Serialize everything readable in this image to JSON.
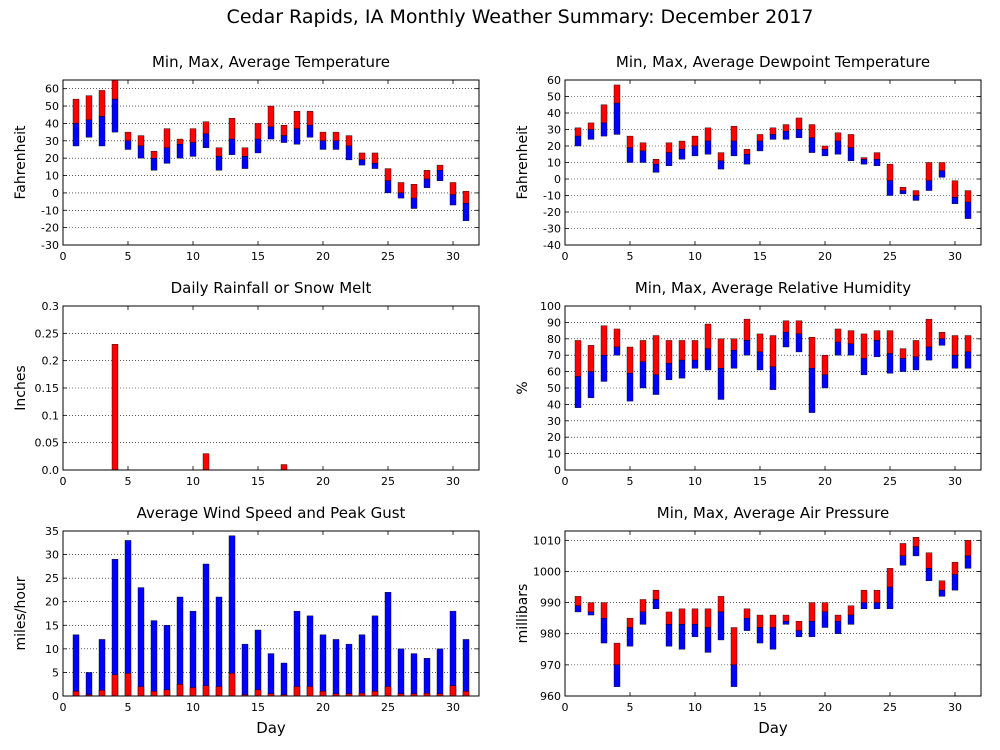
{
  "suptitle": "Cedar Rapids, IA Monthly Weather Summary: December 2017",
  "colors": {
    "max_bar": "#ff0000",
    "min_bar": "#0000ff",
    "gridline": "#000000",
    "background": "#ffffff"
  },
  "chart_data": [
    {
      "id": "temp",
      "type": "bar",
      "title": "Min, Max, Average Temperature",
      "ylabel": "Fahrenheit",
      "xlabel": "",
      "xlim": [
        0,
        32
      ],
      "xticks": [
        0,
        5,
        10,
        15,
        20,
        25,
        30
      ],
      "ylim": [
        -30,
        65
      ],
      "yticks": [
        -30,
        -20,
        -10,
        0,
        10,
        20,
        30,
        40,
        50,
        60
      ],
      "grid": true,
      "encoding": "floating-range",
      "series": [
        {
          "name": "",
          "color": "#ff0000",
          "role": "avg-to-max",
          "x": [
            1,
            2,
            3,
            4,
            5,
            6,
            7,
            8,
            9,
            10,
            11,
            12,
            13,
            14,
            15,
            16,
            17,
            18,
            19,
            20,
            21,
            22,
            23,
            24,
            25,
            26,
            27,
            28,
            29,
            30,
            31
          ],
          "low": [
            40,
            42,
            44,
            54,
            30,
            27,
            20,
            26,
            28,
            29,
            34,
            21,
            31,
            21,
            31,
            38,
            33,
            37,
            39,
            30,
            30,
            27,
            19,
            17,
            7,
            0,
            -3,
            8,
            13,
            -1,
            -6
          ],
          "high": [
            54,
            56,
            59,
            65,
            35,
            33,
            24,
            37,
            31,
            37,
            41,
            26,
            43,
            26,
            40,
            50,
            39,
            47,
            47,
            35,
            35,
            33,
            23,
            23,
            14,
            6,
            5,
            13,
            16,
            6,
            1
          ]
        },
        {
          "name": "",
          "color": "#0000ff",
          "role": "min-to-avg",
          "x": [
            1,
            2,
            3,
            4,
            5,
            6,
            7,
            8,
            9,
            10,
            11,
            12,
            13,
            14,
            15,
            16,
            17,
            18,
            19,
            20,
            21,
            22,
            23,
            24,
            25,
            26,
            27,
            28,
            29,
            30,
            31
          ],
          "low": [
            27,
            32,
            27,
            35,
            25,
            20,
            13,
            17,
            20,
            21,
            26,
            13,
            22,
            14,
            23,
            31,
            29,
            28,
            32,
            25,
            25,
            19,
            16,
            14,
            0,
            -3,
            -9,
            3,
            7,
            -7,
            -16
          ],
          "high": [
            40,
            42,
            44,
            54,
            30,
            27,
            20,
            26,
            28,
            29,
            34,
            21,
            31,
            21,
            31,
            38,
            33,
            37,
            39,
            30,
            30,
            27,
            19,
            17,
            7,
            0,
            -3,
            8,
            13,
            -1,
            -6
          ]
        }
      ]
    },
    {
      "id": "dewp",
      "type": "bar",
      "title": "Min, Max, Average Dewpoint Temperature",
      "ylabel": "Fahrenheit",
      "xlabel": "",
      "xlim": [
        0,
        32
      ],
      "xticks": [
        0,
        5,
        10,
        15,
        20,
        25,
        30
      ],
      "ylim": [
        -40,
        60
      ],
      "yticks": [
        -40,
        -30,
        -20,
        -10,
        0,
        10,
        20,
        30,
        40,
        50,
        60
      ],
      "grid": true,
      "encoding": "floating-range",
      "series": [
        {
          "name": "",
          "color": "#ff0000",
          "role": "avg-to-max",
          "x": [
            1,
            2,
            3,
            4,
            5,
            6,
            7,
            8,
            9,
            10,
            11,
            12,
            13,
            14,
            15,
            16,
            17,
            18,
            19,
            20,
            21,
            22,
            23,
            24,
            25,
            26,
            27,
            28,
            29,
            30,
            31
          ],
          "low": [
            26,
            30,
            34,
            46,
            19,
            17,
            9,
            16,
            18,
            20,
            23,
            11,
            23,
            15,
            23,
            27,
            29,
            30,
            25,
            18,
            23,
            19,
            12,
            12,
            -1,
            -7,
            -10,
            -1,
            5,
            -11,
            -14
          ],
          "high": [
            31,
            34,
            45,
            57,
            26,
            22,
            12,
            22,
            23,
            26,
            31,
            16,
            32,
            18,
            27,
            31,
            33,
            37,
            33,
            20,
            28,
            27,
            13,
            16,
            9,
            -5,
            -7,
            10,
            10,
            -1,
            -7
          ]
        },
        {
          "name": "",
          "color": "#0000ff",
          "role": "min-to-avg",
          "x": [
            1,
            2,
            3,
            4,
            5,
            6,
            7,
            8,
            9,
            10,
            11,
            12,
            13,
            14,
            15,
            16,
            17,
            18,
            19,
            20,
            21,
            22,
            23,
            24,
            25,
            26,
            27,
            28,
            29,
            30,
            31
          ],
          "low": [
            20,
            24,
            26,
            27,
            10,
            10,
            4,
            8,
            12,
            14,
            15,
            6,
            14,
            9,
            17,
            24,
            24,
            25,
            16,
            14,
            15,
            11,
            9,
            8,
            -10,
            -9,
            -13,
            -7,
            1,
            -15,
            -24
          ],
          "high": [
            26,
            30,
            34,
            46,
            19,
            17,
            9,
            16,
            18,
            20,
            23,
            11,
            23,
            15,
            23,
            27,
            29,
            30,
            25,
            18,
            23,
            19,
            12,
            12,
            -1,
            -7,
            -10,
            -1,
            5,
            -11,
            -14
          ]
        }
      ]
    },
    {
      "id": "rain",
      "type": "bar",
      "title": "Daily Rainfall or Snow Melt",
      "ylabel": "Inches",
      "xlabel": "",
      "xlim": [
        0,
        32
      ],
      "xticks": [
        0,
        5,
        10,
        15,
        20,
        25,
        30
      ],
      "ylim": [
        0,
        0.3
      ],
      "yticks": [
        0,
        0.05,
        0.1,
        0.15,
        0.2,
        0.25,
        0.3
      ],
      "ytick_labels": [
        "0.0",
        "0.05",
        "0.1",
        "0.15",
        "0.2",
        "0.25",
        "0.3"
      ],
      "grid": true,
      "encoding": "from-zero",
      "series": [
        {
          "name": "",
          "color": "#ff0000",
          "role": "precip",
          "x": [
            4,
            11,
            17
          ],
          "high": [
            0.23,
            0.03,
            0.01
          ]
        }
      ]
    },
    {
      "id": "rh",
      "type": "bar",
      "title": "Min, Max, Average Relative Humidity",
      "ylabel": "%",
      "xlabel": "",
      "xlim": [
        0,
        32
      ],
      "xticks": [
        0,
        5,
        10,
        15,
        20,
        25,
        30
      ],
      "ylim": [
        0,
        100
      ],
      "yticks": [
        0,
        10,
        20,
        30,
        40,
        50,
        60,
        70,
        80,
        90,
        100
      ],
      "grid": true,
      "encoding": "floating-range",
      "series": [
        {
          "name": "",
          "color": "#ff0000",
          "role": "avg-to-max",
          "x": [
            1,
            2,
            3,
            4,
            5,
            6,
            7,
            8,
            9,
            10,
            11,
            12,
            13,
            14,
            15,
            16,
            17,
            18,
            19,
            20,
            21,
            22,
            23,
            24,
            25,
            26,
            27,
            28,
            29,
            30,
            31
          ],
          "low": [
            57,
            60,
            70,
            75,
            59,
            66,
            58,
            65,
            67,
            67,
            74,
            62,
            73,
            79,
            72,
            63,
            84,
            83,
            62,
            58,
            78,
            77,
            68,
            79,
            71,
            68,
            69,
            75,
            80,
            70,
            72
          ],
          "high": [
            79,
            76,
            88,
            86,
            75,
            79,
            82,
            79,
            79,
            79,
            89,
            80,
            80,
            92,
            83,
            82,
            91,
            91,
            81,
            70,
            86,
            85,
            83,
            85,
            85,
            74,
            79,
            92,
            84,
            82,
            82
          ]
        },
        {
          "name": "",
          "color": "#0000ff",
          "role": "min-to-avg",
          "x": [
            1,
            2,
            3,
            4,
            5,
            6,
            7,
            8,
            9,
            10,
            11,
            12,
            13,
            14,
            15,
            16,
            17,
            18,
            19,
            20,
            21,
            22,
            23,
            24,
            25,
            26,
            27,
            28,
            29,
            30,
            31
          ],
          "low": [
            38,
            44,
            54,
            70,
            42,
            50,
            46,
            55,
            56,
            62,
            61,
            43,
            62,
            70,
            61,
            49,
            75,
            72,
            35,
            50,
            70,
            70,
            58,
            69,
            59,
            60,
            61,
            67,
            76,
            62,
            62
          ],
          "high": [
            57,
            60,
            70,
            75,
            59,
            66,
            58,
            65,
            67,
            67,
            74,
            62,
            73,
            79,
            72,
            63,
            84,
            83,
            62,
            58,
            78,
            77,
            68,
            79,
            71,
            68,
            69,
            75,
            80,
            70,
            72
          ]
        }
      ]
    },
    {
      "id": "wind",
      "type": "bar",
      "title": "Average Wind Speed and Peak Gust",
      "ylabel": "miles/hour",
      "xlabel": "Day",
      "xlim": [
        0,
        32
      ],
      "xticks": [
        0,
        5,
        10,
        15,
        20,
        25,
        30
      ],
      "ylim": [
        0,
        35
      ],
      "yticks": [
        0,
        5,
        10,
        15,
        20,
        25,
        30,
        35
      ],
      "grid": true,
      "encoding": "from-zero",
      "series": [
        {
          "name": "",
          "color": "#0000ff",
          "role": "peak-gust",
          "x": [
            1,
            2,
            3,
            4,
            5,
            6,
            7,
            8,
            9,
            10,
            11,
            12,
            13,
            14,
            15,
            16,
            17,
            18,
            19,
            20,
            21,
            22,
            23,
            24,
            25,
            26,
            27,
            28,
            29,
            30,
            31
          ],
          "high": [
            13,
            5,
            12,
            29,
            33,
            23,
            16,
            15,
            21,
            18,
            28,
            21,
            34,
            11,
            14,
            9,
            7,
            18,
            17,
            13,
            12,
            11,
            13,
            17,
            22,
            10,
            9,
            8,
            10,
            18,
            12
          ]
        },
        {
          "name": "",
          "color": "#ff0000",
          "role": "avg-speed",
          "x": [
            1,
            2,
            3,
            4,
            5,
            6,
            7,
            8,
            9,
            10,
            11,
            12,
            13,
            14,
            15,
            16,
            17,
            18,
            19,
            20,
            21,
            22,
            23,
            24,
            25,
            26,
            27,
            28,
            29,
            30,
            31
          ],
          "high": [
            1,
            0.3,
            1.2,
            4.5,
            4.8,
            2,
            1,
            1.3,
            2.5,
            1.8,
            2.2,
            2,
            4.8,
            0.3,
            1.3,
            0.5,
            0.3,
            2,
            2,
            1,
            0.5,
            0.5,
            0.6,
            1,
            2,
            0.5,
            0.5,
            0.6,
            0.5,
            2.2,
            1
          ]
        }
      ]
    },
    {
      "id": "pres",
      "type": "bar",
      "title": "Min, Max, Average Air Pressure",
      "ylabel": "millibars",
      "xlabel": "Day",
      "xlim": [
        0,
        32
      ],
      "xticks": [
        0,
        5,
        10,
        15,
        20,
        25,
        30
      ],
      "ylim": [
        960,
        1013
      ],
      "yticks": [
        960,
        970,
        980,
        990,
        1000,
        1010
      ],
      "grid": true,
      "encoding": "floating-range",
      "series": [
        {
          "name": "",
          "color": "#ff0000",
          "role": "avg-to-max",
          "x": [
            1,
            2,
            3,
            4,
            5,
            6,
            7,
            8,
            9,
            10,
            11,
            12,
            13,
            14,
            15,
            16,
            17,
            18,
            19,
            20,
            21,
            22,
            23,
            24,
            25,
            26,
            27,
            28,
            29,
            30,
            31
          ],
          "low": [
            989,
            987,
            985,
            970,
            982,
            987,
            991,
            983,
            983,
            983,
            982,
            987,
            970,
            985,
            982,
            982,
            984,
            981,
            984,
            987,
            984,
            986,
            990,
            990,
            995,
            1005,
            1008,
            1001,
            994,
            999,
            1005
          ],
          "high": [
            992,
            990,
            990,
            977,
            985,
            991,
            994,
            987,
            988,
            988,
            988,
            992,
            982,
            988,
            986,
            986,
            986,
            984,
            990,
            990,
            986,
            989,
            994,
            994,
            1001,
            1009,
            1011,
            1006,
            997,
            1003,
            1010
          ]
        },
        {
          "name": "",
          "color": "#0000ff",
          "role": "min-to-avg",
          "x": [
            1,
            2,
            3,
            4,
            5,
            6,
            7,
            8,
            9,
            10,
            11,
            12,
            13,
            14,
            15,
            16,
            17,
            18,
            19,
            20,
            21,
            22,
            23,
            24,
            25,
            26,
            27,
            28,
            29,
            30,
            31
          ],
          "low": [
            987,
            986,
            977,
            963,
            976,
            983,
            988,
            976,
            975,
            979,
            974,
            978,
            963,
            981,
            977,
            975,
            983,
            979,
            979,
            982,
            980,
            983,
            988,
            988,
            988,
            1002,
            1005,
            997,
            992,
            994,
            1001
          ],
          "high": [
            989,
            987,
            985,
            970,
            982,
            987,
            991,
            983,
            983,
            983,
            982,
            987,
            970,
            985,
            982,
            982,
            984,
            981,
            984,
            987,
            984,
            986,
            990,
            990,
            995,
            1005,
            1008,
            1001,
            994,
            999,
            1005
          ]
        }
      ]
    }
  ]
}
